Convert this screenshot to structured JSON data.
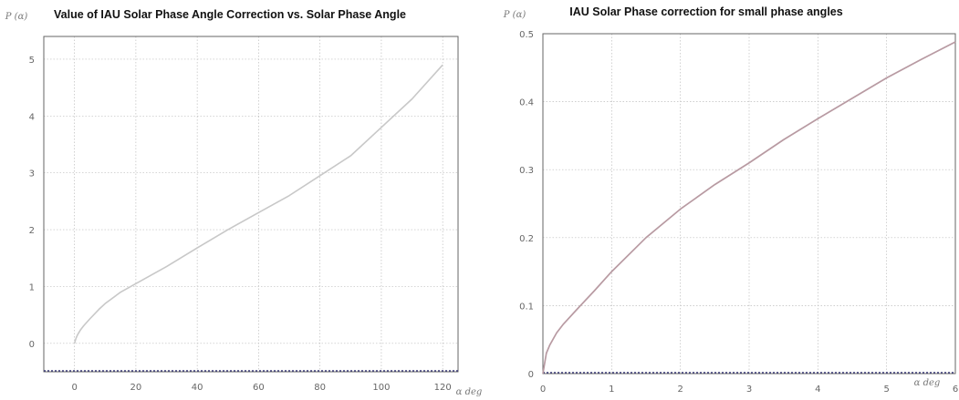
{
  "chart_data": [
    {
      "type": "line",
      "title": "Value of IAU Solar Phase Angle Correction vs. Solar Phase Angle",
      "ylabel": "P (α)",
      "xlabel": "α deg",
      "xlim": [
        -10,
        125
      ],
      "ylim": [
        -0.5,
        5.4
      ],
      "x_ticks": [
        0,
        20,
        40,
        60,
        80,
        100,
        120
      ],
      "y_ticks": [
        0,
        1,
        2,
        3,
        4,
        5
      ],
      "grid": true,
      "color": "#c8c8c8",
      "series": [
        {
          "x": [
            0,
            0.5,
            1,
            2,
            3,
            5,
            8,
            10,
            15,
            20,
            25,
            30,
            40,
            50,
            60,
            70,
            80,
            90,
            100,
            110,
            120
          ],
          "y": [
            0,
            0.09,
            0.15,
            0.24,
            0.31,
            0.43,
            0.6,
            0.7,
            0.9,
            1.05,
            1.2,
            1.35,
            1.68,
            2.0,
            2.3,
            2.6,
            2.95,
            3.3,
            3.8,
            4.3,
            4.9
          ]
        }
      ]
    },
    {
      "type": "line",
      "title": "IAU Solar Phase correction for small phase angles",
      "ylabel": "P (α)",
      "xlabel": "α deg",
      "xlim": [
        0,
        6
      ],
      "ylim": [
        0,
        0.5
      ],
      "x_ticks": [
        0,
        1,
        2,
        3,
        4,
        5,
        6
      ],
      "y_ticks": [
        0,
        0.1,
        0.2,
        0.3,
        0.4,
        0.5
      ],
      "grid": true,
      "color": "#b89aa2",
      "series": [
        {
          "x": [
            0,
            0.05,
            0.1,
            0.2,
            0.3,
            0.5,
            0.75,
            1,
            1.5,
            2,
            2.5,
            3,
            3.5,
            4,
            4.5,
            5,
            5.5,
            6
          ],
          "y": [
            0,
            0.03,
            0.042,
            0.06,
            0.073,
            0.095,
            0.122,
            0.15,
            0.2,
            0.242,
            0.278,
            0.31,
            0.344,
            0.375,
            0.405,
            0.435,
            0.462,
            0.488
          ]
        }
      ]
    }
  ]
}
